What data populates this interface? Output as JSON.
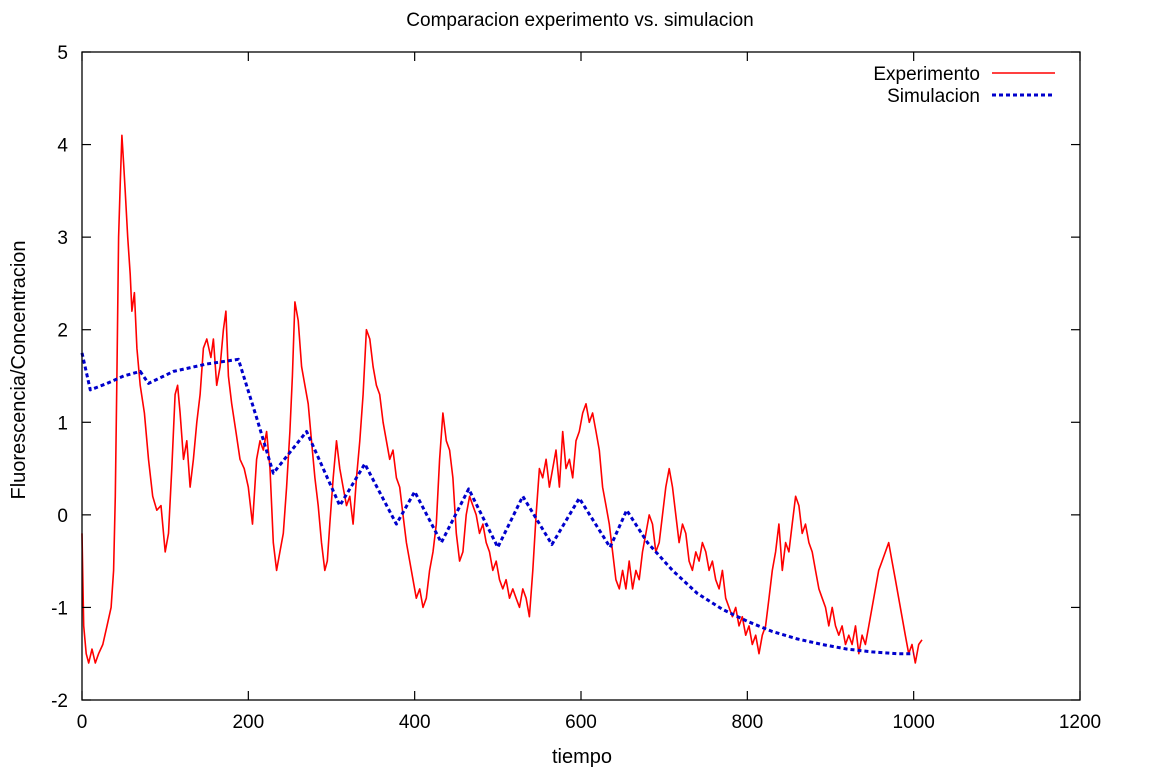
{
  "chart_data": {
    "type": "line",
    "title": "Comparacion experimento vs. simulacion",
    "xlabel": "tiempo",
    "ylabel": "Fluorescencia/Concentracion",
    "xlim": [
      0,
      1200
    ],
    "ylim": [
      -2,
      5
    ],
    "xticks": [
      0,
      200,
      400,
      600,
      800,
      1000,
      1200
    ],
    "yticks": [
      -2,
      -1,
      0,
      1,
      2,
      3,
      4,
      5
    ],
    "grid": false,
    "legend_position": "top-right",
    "series": [
      {
        "name": "Experimento",
        "color": "#ff0000",
        "style": "solid",
        "points": [
          [
            0,
            -0.2
          ],
          [
            2,
            -1.2
          ],
          [
            5,
            -1.5
          ],
          [
            8,
            -1.6
          ],
          [
            12,
            -1.45
          ],
          [
            16,
            -1.6
          ],
          [
            20,
            -1.5
          ],
          [
            25,
            -1.4
          ],
          [
            30,
            -1.2
          ],
          [
            35,
            -1.0
          ],
          [
            38,
            -0.6
          ],
          [
            40,
            0.2
          ],
          [
            42,
            1.5
          ],
          [
            44,
            3.0
          ],
          [
            46,
            3.6
          ],
          [
            48,
            4.1
          ],
          [
            50,
            3.8
          ],
          [
            52,
            3.5
          ],
          [
            55,
            3.0
          ],
          [
            58,
            2.6
          ],
          [
            60,
            2.2
          ],
          [
            63,
            2.4
          ],
          [
            66,
            1.8
          ],
          [
            70,
            1.4
          ],
          [
            75,
            1.1
          ],
          [
            80,
            0.6
          ],
          [
            85,
            0.2
          ],
          [
            90,
            0.05
          ],
          [
            95,
            0.1
          ],
          [
            100,
            -0.4
          ],
          [
            104,
            -0.2
          ],
          [
            108,
            0.5
          ],
          [
            112,
            1.3
          ],
          [
            115,
            1.4
          ],
          [
            118,
            1.1
          ],
          [
            122,
            0.6
          ],
          [
            126,
            0.8
          ],
          [
            130,
            0.3
          ],
          [
            134,
            0.6
          ],
          [
            138,
            1.0
          ],
          [
            142,
            1.3
          ],
          [
            146,
            1.8
          ],
          [
            150,
            1.9
          ],
          [
            155,
            1.7
          ],
          [
            158,
            1.9
          ],
          [
            162,
            1.4
          ],
          [
            166,
            1.6
          ],
          [
            170,
            2.0
          ],
          [
            173,
            2.2
          ],
          [
            176,
            1.5
          ],
          [
            180,
            1.2
          ],
          [
            185,
            0.9
          ],
          [
            190,
            0.6
          ],
          [
            195,
            0.5
          ],
          [
            200,
            0.3
          ],
          [
            205,
            -0.1
          ],
          [
            210,
            0.6
          ],
          [
            214,
            0.8
          ],
          [
            218,
            0.7
          ],
          [
            222,
            0.9
          ],
          [
            226,
            0.5
          ],
          [
            230,
            -0.3
          ],
          [
            234,
            -0.6
          ],
          [
            238,
            -0.4
          ],
          [
            242,
            -0.2
          ],
          [
            246,
            0.3
          ],
          [
            250,
            0.9
          ],
          [
            253,
            1.5
          ],
          [
            256,
            2.3
          ],
          [
            260,
            2.1
          ],
          [
            264,
            1.6
          ],
          [
            268,
            1.4
          ],
          [
            272,
            1.2
          ],
          [
            276,
            0.8
          ],
          [
            280,
            0.4
          ],
          [
            284,
            0.1
          ],
          [
            288,
            -0.3
          ],
          [
            292,
            -0.6
          ],
          [
            295,
            -0.5
          ],
          [
            298,
            -0.1
          ],
          [
            302,
            0.4
          ],
          [
            306,
            0.8
          ],
          [
            310,
            0.5
          ],
          [
            314,
            0.3
          ],
          [
            318,
            0.1
          ],
          [
            322,
            0.2
          ],
          [
            326,
            -0.1
          ],
          [
            330,
            0.4
          ],
          [
            334,
            0.8
          ],
          [
            338,
            1.3
          ],
          [
            342,
            2.0
          ],
          [
            346,
            1.9
          ],
          [
            350,
            1.6
          ],
          [
            354,
            1.4
          ],
          [
            358,
            1.3
          ],
          [
            362,
            1.0
          ],
          [
            366,
            0.8
          ],
          [
            370,
            0.6
          ],
          [
            374,
            0.7
          ],
          [
            378,
            0.4
          ],
          [
            382,
            0.3
          ],
          [
            386,
            0.0
          ],
          [
            390,
            -0.3
          ],
          [
            394,
            -0.5
          ],
          [
            398,
            -0.7
          ],
          [
            402,
            -0.9
          ],
          [
            406,
            -0.8
          ],
          [
            410,
            -1.0
          ],
          [
            414,
            -0.9
          ],
          [
            418,
            -0.6
          ],
          [
            422,
            -0.4
          ],
          [
            426,
            -0.1
          ],
          [
            430,
            0.6
          ],
          [
            434,
            1.1
          ],
          [
            438,
            0.8
          ],
          [
            442,
            0.7
          ],
          [
            446,
            0.4
          ],
          [
            450,
            -0.2
          ],
          [
            454,
            -0.5
          ],
          [
            458,
            -0.4
          ],
          [
            462,
            0.0
          ],
          [
            466,
            0.2
          ],
          [
            470,
            0.1
          ],
          [
            474,
            0.0
          ],
          [
            478,
            -0.2
          ],
          [
            482,
            -0.1
          ],
          [
            486,
            -0.3
          ],
          [
            490,
            -0.4
          ],
          [
            494,
            -0.6
          ],
          [
            498,
            -0.5
          ],
          [
            502,
            -0.7
          ],
          [
            506,
            -0.8
          ],
          [
            510,
            -0.7
          ],
          [
            514,
            -0.9
          ],
          [
            518,
            -0.8
          ],
          [
            522,
            -0.9
          ],
          [
            526,
            -1.0
          ],
          [
            530,
            -0.8
          ],
          [
            534,
            -0.9
          ],
          [
            538,
            -1.1
          ],
          [
            542,
            -0.6
          ],
          [
            546,
            0.0
          ],
          [
            550,
            0.5
          ],
          [
            554,
            0.4
          ],
          [
            558,
            0.6
          ],
          [
            562,
            0.3
          ],
          [
            566,
            0.5
          ],
          [
            570,
            0.7
          ],
          [
            574,
            0.3
          ],
          [
            578,
            0.9
          ],
          [
            582,
            0.5
          ],
          [
            586,
            0.6
          ],
          [
            590,
            0.4
          ],
          [
            594,
            0.8
          ],
          [
            598,
            0.9
          ],
          [
            602,
            1.1
          ],
          [
            606,
            1.2
          ],
          [
            610,
            1.0
          ],
          [
            614,
            1.1
          ],
          [
            618,
            0.9
          ],
          [
            622,
            0.7
          ],
          [
            626,
            0.3
          ],
          [
            630,
            0.1
          ],
          [
            634,
            -0.1
          ],
          [
            638,
            -0.4
          ],
          [
            642,
            -0.7
          ],
          [
            646,
            -0.8
          ],
          [
            650,
            -0.6
          ],
          [
            654,
            -0.8
          ],
          [
            658,
            -0.5
          ],
          [
            662,
            -0.8
          ],
          [
            666,
            -0.6
          ],
          [
            670,
            -0.7
          ],
          [
            674,
            -0.4
          ],
          [
            678,
            -0.2
          ],
          [
            682,
            0.0
          ],
          [
            686,
            -0.1
          ],
          [
            690,
            -0.4
          ],
          [
            694,
            -0.3
          ],
          [
            698,
            0.0
          ],
          [
            702,
            0.3
          ],
          [
            706,
            0.5
          ],
          [
            710,
            0.3
          ],
          [
            714,
            0.0
          ],
          [
            718,
            -0.3
          ],
          [
            722,
            -0.1
          ],
          [
            726,
            -0.2
          ],
          [
            730,
            -0.5
          ],
          [
            734,
            -0.6
          ],
          [
            738,
            -0.4
          ],
          [
            742,
            -0.5
          ],
          [
            746,
            -0.3
          ],
          [
            750,
            -0.4
          ],
          [
            754,
            -0.6
          ],
          [
            758,
            -0.5
          ],
          [
            762,
            -0.7
          ],
          [
            766,
            -0.8
          ],
          [
            770,
            -0.6
          ],
          [
            774,
            -0.9
          ],
          [
            778,
            -1.0
          ],
          [
            782,
            -1.1
          ],
          [
            786,
            -1.0
          ],
          [
            790,
            -1.2
          ],
          [
            794,
            -1.1
          ],
          [
            798,
            -1.3
          ],
          [
            802,
            -1.2
          ],
          [
            806,
            -1.4
          ],
          [
            810,
            -1.3
          ],
          [
            814,
            -1.5
          ],
          [
            818,
            -1.3
          ],
          [
            822,
            -1.2
          ],
          [
            826,
            -0.9
          ],
          [
            830,
            -0.6
          ],
          [
            834,
            -0.4
          ],
          [
            838,
            -0.1
          ],
          [
            842,
            -0.6
          ],
          [
            846,
            -0.3
          ],
          [
            850,
            -0.4
          ],
          [
            854,
            -0.1
          ],
          [
            858,
            0.2
          ],
          [
            862,
            0.1
          ],
          [
            866,
            -0.2
          ],
          [
            870,
            -0.1
          ],
          [
            874,
            -0.3
          ],
          [
            878,
            -0.4
          ],
          [
            882,
            -0.6
          ],
          [
            886,
            -0.8
          ],
          [
            890,
            -0.9
          ],
          [
            894,
            -1.0
          ],
          [
            898,
            -1.2
          ],
          [
            902,
            -1.0
          ],
          [
            906,
            -1.2
          ],
          [
            910,
            -1.3
          ],
          [
            914,
            -1.2
          ],
          [
            918,
            -1.4
          ],
          [
            922,
            -1.3
          ],
          [
            926,
            -1.4
          ],
          [
            930,
            -1.2
          ],
          [
            934,
            -1.5
          ],
          [
            938,
            -1.3
          ],
          [
            942,
            -1.4
          ],
          [
            946,
            -1.2
          ],
          [
            950,
            -1.0
          ],
          [
            954,
            -0.8
          ],
          [
            958,
            -0.6
          ],
          [
            962,
            -0.5
          ],
          [
            966,
            -0.4
          ],
          [
            970,
            -0.3
          ],
          [
            974,
            -0.5
          ],
          [
            978,
            -0.7
          ],
          [
            982,
            -0.9
          ],
          [
            986,
            -1.1
          ],
          [
            990,
            -1.3
          ],
          [
            994,
            -1.5
          ],
          [
            998,
            -1.4
          ],
          [
            1002,
            -1.6
          ],
          [
            1006,
            -1.4
          ],
          [
            1010,
            -1.35
          ]
        ]
      },
      {
        "name": "Simulacion",
        "color": "#0000cc",
        "style": "dotted",
        "points": [
          [
            0,
            1.75
          ],
          [
            10,
            1.35
          ],
          [
            30,
            1.42
          ],
          [
            50,
            1.5
          ],
          [
            70,
            1.55
          ],
          [
            80,
            1.42
          ],
          [
            110,
            1.55
          ],
          [
            150,
            1.63
          ],
          [
            188,
            1.68
          ],
          [
            210,
            1.05
          ],
          [
            230,
            0.45
          ],
          [
            270,
            0.9
          ],
          [
            310,
            0.1
          ],
          [
            340,
            0.55
          ],
          [
            378,
            -0.1
          ],
          [
            400,
            0.25
          ],
          [
            432,
            -0.3
          ],
          [
            465,
            0.28
          ],
          [
            500,
            -0.35
          ],
          [
            530,
            0.2
          ],
          [
            565,
            -0.32
          ],
          [
            598,
            0.18
          ],
          [
            635,
            -0.35
          ],
          [
            655,
            0.05
          ],
          [
            680,
            -0.3
          ],
          [
            710,
            -0.6
          ],
          [
            740,
            -0.85
          ],
          [
            770,
            -1.02
          ],
          [
            800,
            -1.15
          ],
          [
            830,
            -1.26
          ],
          [
            860,
            -1.34
          ],
          [
            890,
            -1.4
          ],
          [
            920,
            -1.45
          ],
          [
            950,
            -1.48
          ],
          [
            980,
            -1.5
          ],
          [
            1000,
            -1.5
          ]
        ]
      }
    ]
  }
}
